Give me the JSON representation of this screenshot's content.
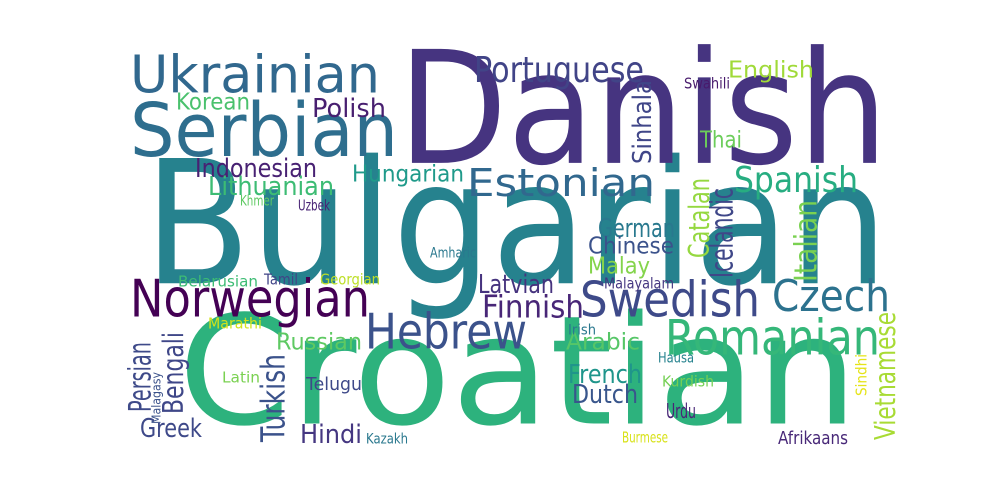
{
  "words": [
    {
      "text": "Croatian",
      "color": "#2db27d"
    },
    {
      "text": "Bulgarian",
      "color": "#26828e"
    },
    {
      "text": "Danish",
      "color": "#463480"
    },
    {
      "text": "Serbian",
      "color": "#2e6e8e"
    },
    {
      "text": "Ukrainian",
      "color": "#31688e"
    },
    {
      "text": "Norwegian",
      "color": "#440154"
    },
    {
      "text": "Swedish",
      "color": "#3e4a89"
    },
    {
      "text": "Hebrew",
      "color": "#3b528b"
    },
    {
      "text": "Romanian",
      "color": "#35b779"
    },
    {
      "text": "Czech",
      "color": "#2c728e"
    },
    {
      "text": "Estonian",
      "color": "#31688e"
    },
    {
      "text": "Portuguese",
      "color": "#414487"
    },
    {
      "text": "Spanish",
      "color": "#27ad81"
    },
    {
      "text": "Finnish",
      "color": "#482677"
    },
    {
      "text": "Polish",
      "color": "#481f70"
    },
    {
      "text": "Indonesian",
      "color": "#482173"
    },
    {
      "text": "Lithuanian",
      "color": "#3dbc74"
    },
    {
      "text": "Hungarian",
      "color": "#1f9a8a"
    },
    {
      "text": "Korean",
      "color": "#4ac16d"
    },
    {
      "text": "English",
      "color": "#a0da39"
    },
    {
      "text": "Thai",
      "color": "#6ccd5a"
    },
    {
      "text": "German",
      "color": "#29798e"
    },
    {
      "text": "Chinese",
      "color": "#3b528b"
    },
    {
      "text": "Malay",
      "color": "#84d44b"
    },
    {
      "text": "Latvian",
      "color": "#46337e"
    },
    {
      "text": "Russian",
      "color": "#5ec962"
    },
    {
      "text": "Arabic",
      "color": "#56c667"
    },
    {
      "text": "French",
      "color": "#1f958b"
    },
    {
      "text": "Dutch",
      "color": "#39568c"
    },
    {
      "text": "Greek",
      "color": "#3e4989"
    },
    {
      "text": "Hindi",
      "color": "#453781"
    },
    {
      "text": "Turkish",
      "color": "#3b528b"
    },
    {
      "text": "Bengali",
      "color": "#3f4788"
    },
    {
      "text": "Persian",
      "color": "#3e4a89"
    },
    {
      "text": "Catalan",
      "color": "#95d840"
    },
    {
      "text": "Icelandic",
      "color": "#3f4788"
    },
    {
      "text": "Italian",
      "color": "#7ad151"
    },
    {
      "text": "Vietnamese",
      "color": "#a8db34"
    },
    {
      "text": "Sinhala",
      "color": "#404688"
    },
    {
      "text": "Swahili",
      "color": "#481a6c"
    },
    {
      "text": "Urdu",
      "color": "#482677"
    },
    {
      "text": "Khmer",
      "color": "#5ec962"
    },
    {
      "text": "Uzbek",
      "color": "#482475"
    },
    {
      "text": "Amharic",
      "color": "#2a788e"
    },
    {
      "text": "Belarusian",
      "color": "#3dbc74"
    },
    {
      "text": "Tamil",
      "color": "#414487"
    },
    {
      "text": "Georgian",
      "color": "#bddf26"
    },
    {
      "text": "Malayalam",
      "color": "#453781"
    },
    {
      "text": "Marathi",
      "color": "#d2e21b"
    },
    {
      "text": "Malagasy",
      "color": "#3b528b"
    },
    {
      "text": "Irish",
      "color": "#2a788e"
    },
    {
      "text": "Hausa",
      "color": "#26828e"
    },
    {
      "text": "Latin",
      "color": "#7ad151"
    },
    {
      "text": "Telugu",
      "color": "#3e4989"
    },
    {
      "text": "Kurdish",
      "color": "#75d054"
    },
    {
      "text": "Sindhi",
      "color": "#e5e419"
    },
    {
      "text": "Kazakh",
      "color": "#2a788e"
    },
    {
      "text": "Burmese",
      "color": "#d8e219"
    },
    {
      "text": "Afrikaans",
      "color": "#482878"
    }
  ]
}
